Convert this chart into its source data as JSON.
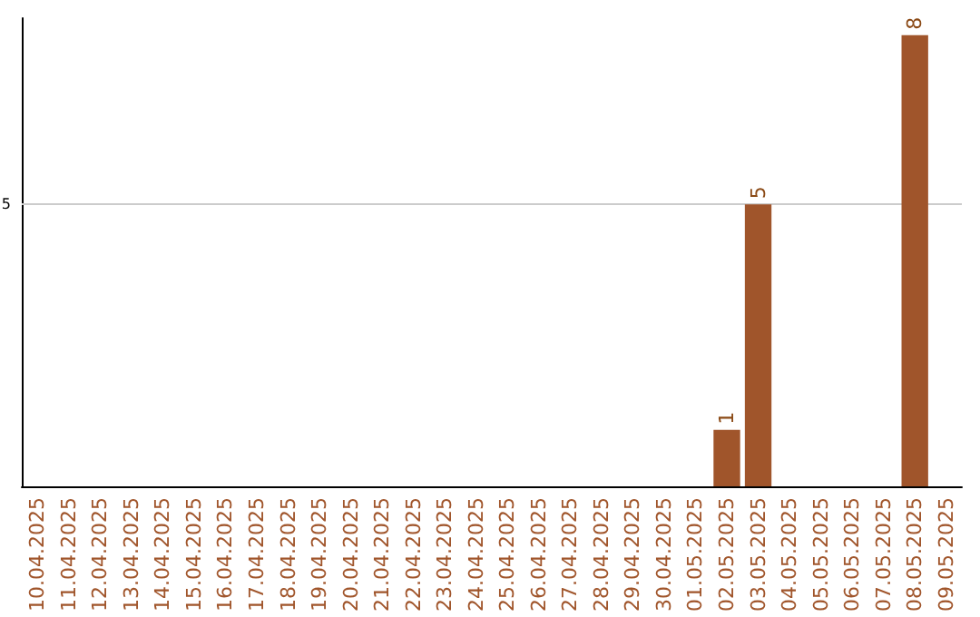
{
  "chart_data": {
    "type": "bar",
    "categories": [
      "10.04.2025",
      "11.04.2025",
      "12.04.2025",
      "13.04.2025",
      "14.04.2025",
      "15.04.2025",
      "16.04.2025",
      "17.04.2025",
      "18.04.2025",
      "19.04.2025",
      "20.04.2025",
      "21.04.2025",
      "22.04.2025",
      "23.04.2025",
      "24.04.2025",
      "25.04.2025",
      "26.04.2025",
      "27.04.2025",
      "28.04.2025",
      "29.04.2025",
      "30.04.2025",
      "01.05.2025",
      "02.05.2025",
      "03.05.2025",
      "04.05.2025",
      "05.05.2025",
      "06.05.2025",
      "07.05.2025",
      "08.05.2025",
      "09.05.2025"
    ],
    "values": [
      null,
      null,
      null,
      null,
      null,
      null,
      null,
      null,
      null,
      null,
      null,
      null,
      null,
      null,
      null,
      null,
      null,
      null,
      null,
      null,
      null,
      null,
      1,
      5,
      null,
      null,
      null,
      null,
      8,
      null
    ],
    "value_labels": [
      null,
      null,
      null,
      null,
      null,
      null,
      null,
      null,
      null,
      null,
      null,
      null,
      null,
      null,
      null,
      null,
      null,
      null,
      null,
      null,
      null,
      null,
      "1",
      "5",
      null,
      null,
      null,
      null,
      "8",
      null
    ],
    "color": "#a0552b",
    "ylim": [
      0,
      8.3
    ],
    "ref_lines": [
      {
        "axis": "y",
        "value": 5,
        "label": "5",
        "color": "#cccccc"
      }
    ]
  }
}
